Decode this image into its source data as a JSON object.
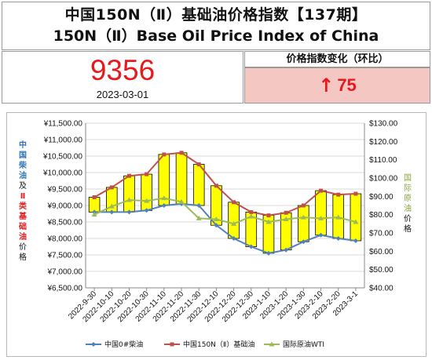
{
  "header": {
    "title_cn": "中国150N（Ⅱ）基础油价格指数【137期】",
    "title_en": "150N（Ⅱ）Base Oil Price Index of China"
  },
  "index": {
    "value": "9356",
    "date": "2023-03-01"
  },
  "change": {
    "label": "价格指数变化（环比）",
    "arrow": "↑",
    "value": "75"
  },
  "colors": {
    "index_red": "#e8191d",
    "change_bg": "#f4c7c3",
    "candle_fill": "#ffff00",
    "diesel_line": "#4f81bd",
    "baseoil_line": "#c0504d",
    "wti_line": "#9bbb59"
  },
  "chart_data": {
    "type": "line",
    "left_axis_label": {
      "blue_part": [
        "中",
        "国",
        "柴",
        "油"
      ],
      "mid_part": [
        "及"
      ],
      "red_part": [
        "Ⅱ",
        "类",
        "基",
        "础",
        "油"
      ],
      "tail_part": [
        "价",
        "格"
      ]
    },
    "right_axis_label": {
      "green_part": [
        "国",
        "际",
        "原",
        "油"
      ],
      "tail_part": [
        "价",
        "格"
      ]
    },
    "categories": [
      "2022-9-30",
      "2022-10-10",
      "2022-10-20",
      "2022-10-30",
      "2022-11-10",
      "2022-11-20",
      "2022-11-30",
      "2022-12-10",
      "2022-12-20",
      "2022-12-30",
      "2023-1-10",
      "2023-1-20",
      "2023-1-30",
      "2023-2-10",
      "2023-2-20",
      "2023-3-1"
    ],
    "left_ticks": [
      "¥11,500.00",
      "¥11,000.00",
      "¥10,500.00",
      "¥10,000.00",
      "¥9,500.00",
      "¥9,000.00",
      "¥8,500.00",
      "¥8,000.00",
      "¥7,500.00",
      "¥7,000.00",
      "¥6,500.00"
    ],
    "left_ylim": [
      6500,
      11500
    ],
    "right_ticks": [
      "$130.00",
      "$120.00",
      "$110.00",
      "$100.00",
      "$90.00",
      "$80.00",
      "$70.00",
      "$60.00",
      "$50.00",
      "$40.00"
    ],
    "right_ylim": [
      40,
      130
    ],
    "series": [
      {
        "name": "中国0#柴油",
        "axis": "left",
        "values": [
          8800,
          8800,
          8800,
          8850,
          9000,
          9050,
          9000,
          8400,
          8000,
          7750,
          7550,
          7650,
          7900,
          8100,
          8000,
          7930
        ]
      },
      {
        "name": "中国150N（Ⅱ）基础油",
        "axis": "left",
        "values": [
          9250,
          9550,
          9900,
          9950,
          10550,
          10600,
          10250,
          9600,
          9100,
          8800,
          8700,
          8780,
          9000,
          9450,
          9330,
          9356
        ]
      },
      {
        "name": "国际原油WTI",
        "axis": "right",
        "values": [
          80,
          84.5,
          88,
          87.5,
          89,
          87,
          78,
          77.5,
          75,
          79,
          76,
          77.5,
          78.5,
          78,
          78.5,
          76
        ]
      }
    ],
    "grid": true,
    "legend_position": "bottom"
  }
}
